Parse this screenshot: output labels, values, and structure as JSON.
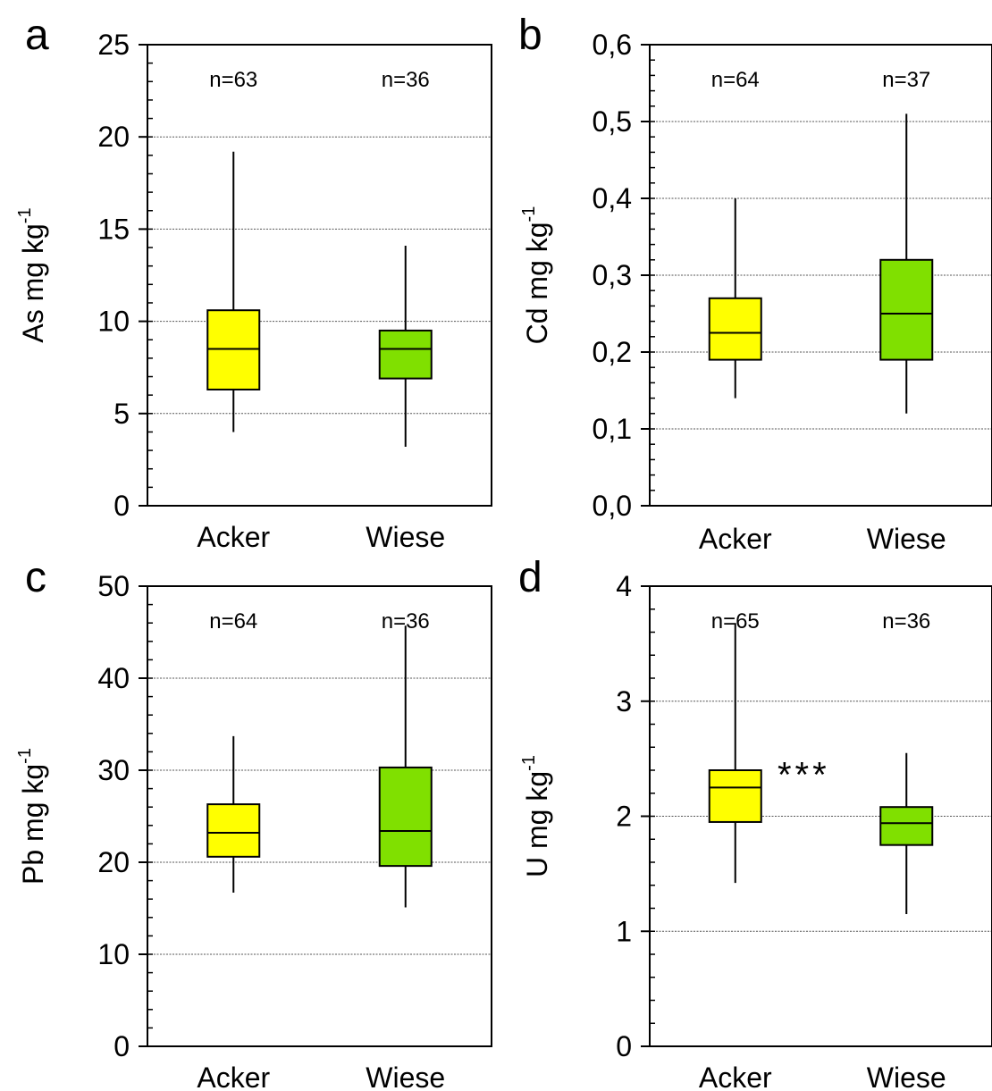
{
  "colors": {
    "acker": "#ffff00",
    "wiese": "#80e000",
    "stroke": "#000000",
    "grid": "#555555"
  },
  "chart_data": [
    {
      "type": "box",
      "panel_label": "a",
      "ylabel": "As mg kg",
      "ylabel_sup": "-1",
      "ylim": [
        0,
        25
      ],
      "yticks": [
        "0",
        "5",
        "10",
        "15",
        "20",
        "25"
      ],
      "ytick_values": [
        0,
        5,
        10,
        15,
        20,
        25
      ],
      "minor_step": 1,
      "grid_values": [
        5,
        10,
        15,
        20
      ],
      "categories": [
        "Acker",
        "Wiese"
      ],
      "boxes": [
        {
          "category": "Acker",
          "n": "n=63",
          "min": 4.0,
          "q1": 6.3,
          "median": 8.5,
          "q3": 10.6,
          "max": 19.2,
          "color_key": "acker"
        },
        {
          "category": "Wiese",
          "n": "n=36",
          "min": 3.2,
          "q1": 6.9,
          "median": 8.5,
          "q3": 9.5,
          "max": 14.1,
          "color_key": "wiese"
        }
      ],
      "annotation": ""
    },
    {
      "type": "box",
      "panel_label": "b",
      "ylabel": "Cd mg kg",
      "ylabel_sup": "-1",
      "ylim": [
        0,
        0.6
      ],
      "yticks": [
        "0,0",
        "0,1",
        "0,2",
        "0,3",
        "0,4",
        "0,5",
        "0,6"
      ],
      "ytick_values": [
        0,
        0.1,
        0.2,
        0.3,
        0.4,
        0.5,
        0.6
      ],
      "minor_step": 0.02,
      "grid_values": [
        0.1,
        0.2,
        0.3,
        0.4,
        0.5
      ],
      "categories": [
        "Acker",
        "Wiese"
      ],
      "boxes": [
        {
          "category": "Acker",
          "n": "n=64",
          "min": 0.14,
          "q1": 0.19,
          "median": 0.225,
          "q3": 0.27,
          "max": 0.4,
          "color_key": "acker"
        },
        {
          "category": "Wiese",
          "n": "n=37",
          "min": 0.12,
          "q1": 0.19,
          "median": 0.25,
          "q3": 0.32,
          "max": 0.51,
          "color_key": "wiese"
        }
      ],
      "annotation": ""
    },
    {
      "type": "box",
      "panel_label": "c",
      "ylabel": "Pb mg kg",
      "ylabel_sup": "-1",
      "ylim": [
        0,
        50
      ],
      "yticks": [
        "0",
        "10",
        "20",
        "30",
        "40",
        "50"
      ],
      "ytick_values": [
        0,
        10,
        20,
        30,
        40,
        50
      ],
      "minor_step": 2,
      "grid_values": [
        10,
        20,
        30,
        40
      ],
      "categories": [
        "Acker",
        "Wiese"
      ],
      "boxes": [
        {
          "category": "Acker",
          "n": "n=64",
          "min": 16.7,
          "q1": 20.6,
          "median": 23.2,
          "q3": 26.3,
          "max": 33.7,
          "color_key": "acker"
        },
        {
          "category": "Wiese",
          "n": "n=36",
          "min": 15.1,
          "q1": 19.6,
          "median": 23.4,
          "q3": 30.3,
          "max": 45.7,
          "color_key": "wiese"
        }
      ],
      "annotation": ""
    },
    {
      "type": "box",
      "panel_label": "d",
      "ylabel": "U mg kg",
      "ylabel_sup": "-1",
      "ylim": [
        0,
        4
      ],
      "yticks": [
        "0",
        "1",
        "2",
        "3",
        "4"
      ],
      "ytick_values": [
        0,
        1,
        2,
        3,
        4
      ],
      "minor_step": 0.2,
      "grid_values": [
        1,
        2,
        3
      ],
      "categories": [
        "Acker",
        "Wiese"
      ],
      "boxes": [
        {
          "category": "Acker",
          "n": "n=65",
          "min": 1.42,
          "q1": 1.95,
          "median": 2.25,
          "q3": 2.4,
          "max": 3.68,
          "color_key": "acker"
        },
        {
          "category": "Wiese",
          "n": "n=36",
          "min": 1.15,
          "q1": 1.75,
          "median": 1.94,
          "q3": 2.08,
          "max": 2.55,
          "color_key": "wiese"
        }
      ],
      "annotation": "***"
    }
  ]
}
